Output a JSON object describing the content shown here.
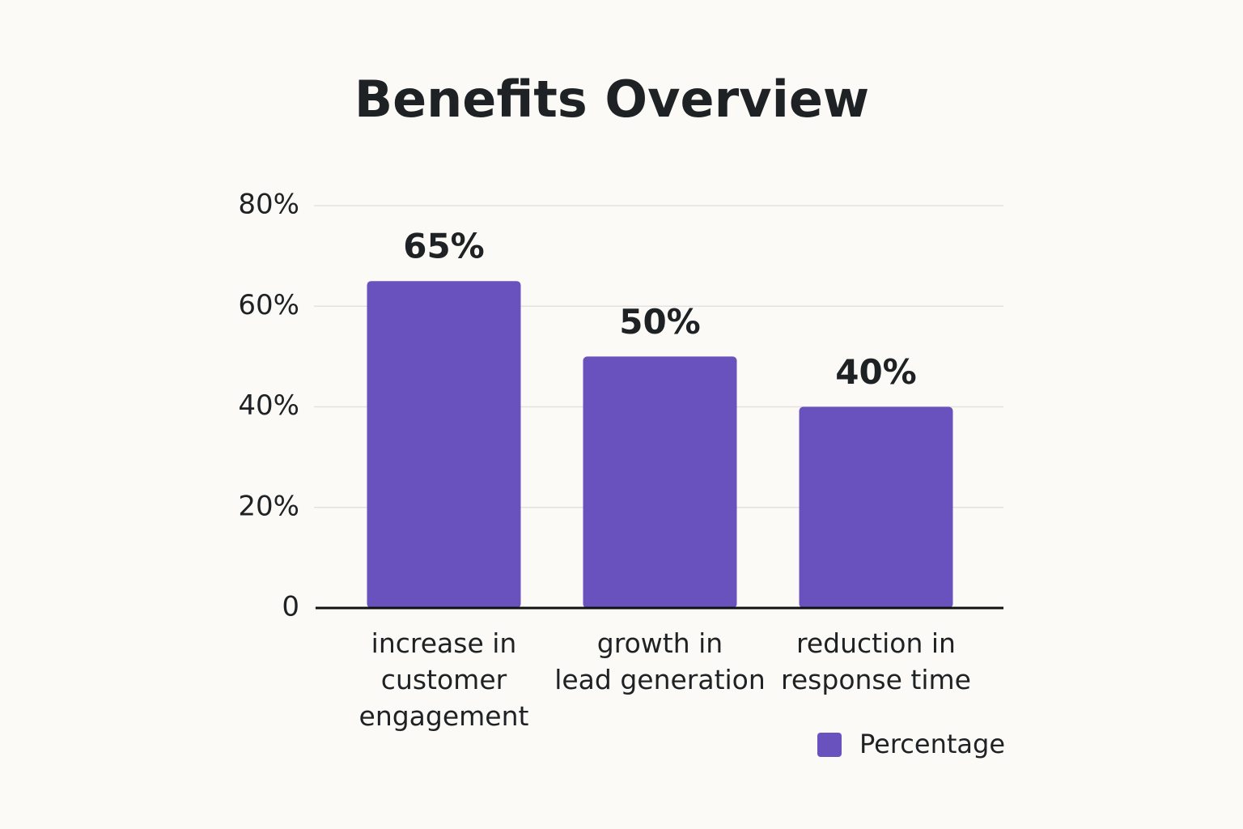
{
  "chart_data": {
    "type": "bar",
    "title": "Benefits Overview",
    "categories": [
      "increase in\ncustomer\nengagement",
      "growth in\nlead generation",
      "reduction in\nresponse time"
    ],
    "series": [
      {
        "name": "Percentage",
        "color": "#6952bd",
        "values": [
          65,
          50,
          40
        ],
        "value_labels": [
          "65%",
          "50%",
          "40%"
        ]
      }
    ],
    "ylim": [
      0,
      80
    ],
    "yticks": [
      0,
      {
        "value": 20,
        "label": "20%"
      },
      {
        "value": 40,
        "label": "40%"
      },
      {
        "value": 60,
        "label": "60%"
      },
      {
        "value": 80,
        "label": "80%"
      }
    ],
    "grid": true,
    "legend": "bottom-right"
  }
}
